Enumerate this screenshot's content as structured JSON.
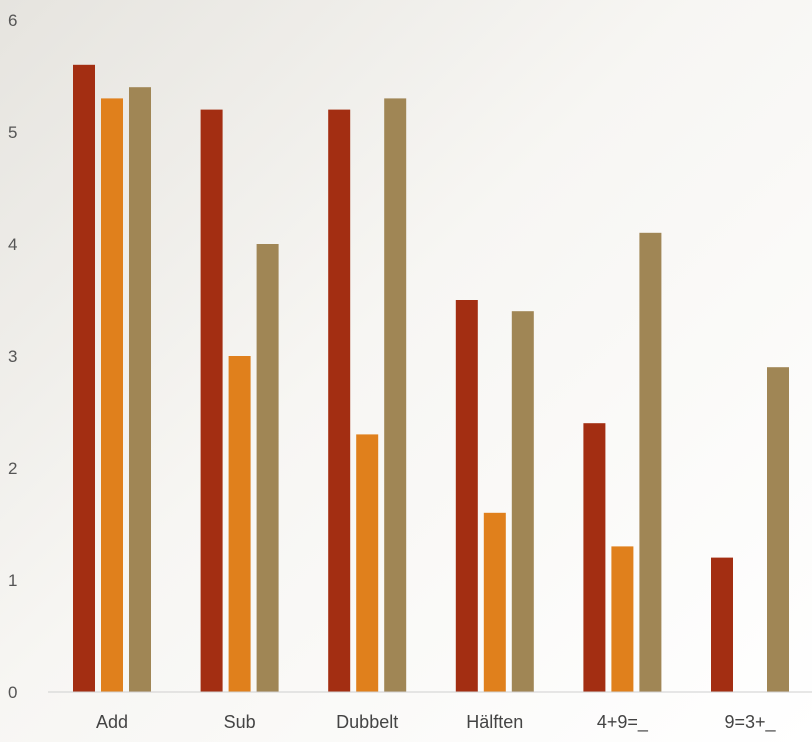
{
  "chart_data": {
    "type": "bar",
    "categories": [
      "Add",
      "Sub",
      "Dubbelt",
      "Hälften",
      "4+9=_",
      "9=3+_"
    ],
    "series": [
      {
        "values": [
          5.6,
          5.2,
          5.2,
          3.5,
          2.4,
          1.2
        ]
      },
      {
        "values": [
          5.3,
          3.0,
          2.3,
          1.6,
          1.3,
          0
        ]
      },
      {
        "values": [
          5.4,
          4.0,
          5.3,
          3.4,
          4.1,
          2.9
        ]
      }
    ],
    "yticks": [
      "0",
      "1",
      "2",
      "3",
      "4",
      "5",
      "6"
    ],
    "ylim": [
      0,
      6
    ],
    "grid": false,
    "legend": "none",
    "colors": [
      "#a32e12",
      "#e0801c",
      "#a08655"
    ]
  }
}
